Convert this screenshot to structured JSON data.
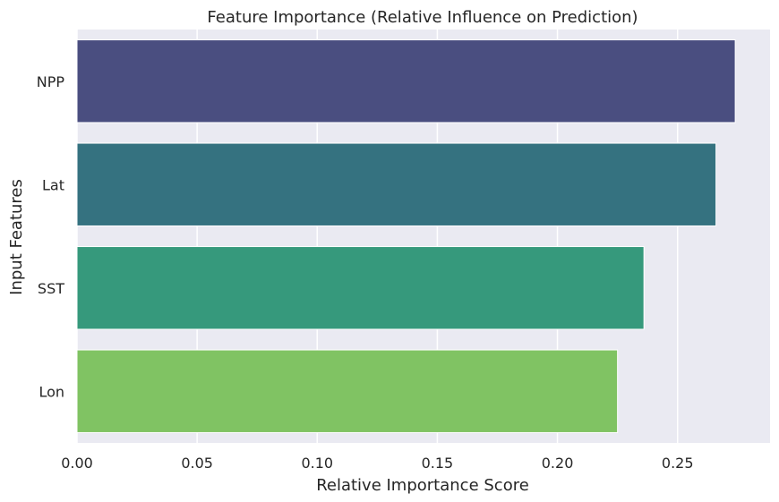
{
  "chart_data": {
    "type": "bar",
    "orientation": "horizontal",
    "title": "Feature Importance (Relative Influence on Prediction)",
    "xlabel": "Relative Importance Score",
    "ylabel": "Input Features",
    "categories": [
      "NPP",
      "Lat",
      "SST",
      "Lon"
    ],
    "values": [
      0.274,
      0.266,
      0.236,
      0.225
    ],
    "xlim": [
      0,
      0.2885
    ],
    "xticks": [
      "0.00",
      "0.05",
      "0.10",
      "0.15",
      "0.20",
      "0.25"
    ],
    "xtick_values": [
      0,
      0.05,
      0.1,
      0.15,
      0.2,
      0.25
    ],
    "grid": true,
    "colors": {
      "plot_background": "#eaeaf2",
      "grid": "#ffffff",
      "bars": [
        "#4a4e80",
        "#357280",
        "#36997c",
        "#80c363"
      ]
    }
  }
}
